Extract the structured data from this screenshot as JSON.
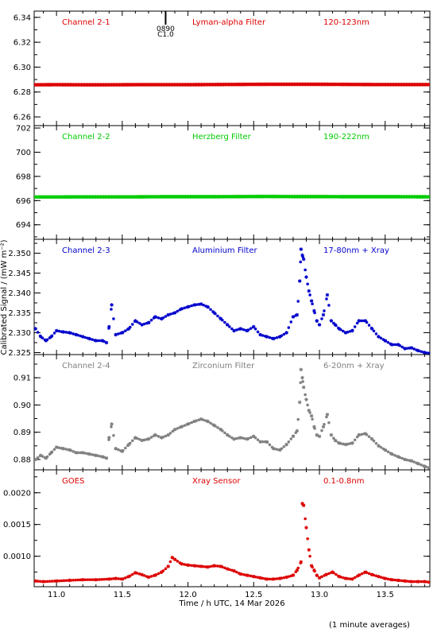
{
  "footnote": "(1 minute averages)",
  "chart_data": [
    {
      "type": "scatter",
      "title": "Channel 2-1",
      "filter": "Lyman-alpha Filter",
      "band": "120-123nm",
      "color": "#dd0000",
      "ylim": [
        6.253,
        6.345
      ],
      "yticks": [
        6.26,
        6.28,
        6.3,
        6.32,
        6.34
      ],
      "ytick_labels": [
        "6.26",
        "6.28",
        "6.30",
        "6.32",
        "6.34"
      ],
      "xlim": [
        10.83,
        13.84
      ],
      "grid": false,
      "annotation": {
        "x": 11.83,
        "lines": [
          "0890",
          "C1.0"
        ]
      },
      "x": [
        10.85,
        11.0,
        11.2,
        11.4,
        11.6,
        11.8,
        12.0,
        12.2,
        12.4,
        12.6,
        12.8,
        13.0,
        13.2,
        13.4,
        13.6,
        13.84
      ],
      "y": [
        6.2858,
        6.2859,
        6.2858,
        6.2858,
        6.2859,
        6.2859,
        6.2859,
        6.286,
        6.2861,
        6.2862,
        6.2862,
        6.2862,
        6.2861,
        6.286,
        6.286,
        6.286
      ]
    },
    {
      "type": "scatter",
      "title": "Channel 2-2",
      "filter": "Herzberg Filter",
      "band": "190-222nm",
      "color": "#00cc00",
      "ylim": [
        692.8,
        702.2
      ],
      "yticks": [
        694,
        696,
        698,
        700,
        702
      ],
      "ytick_labels": [
        "694",
        "696",
        "698",
        "700",
        "702"
      ],
      "xlim": [
        10.83,
        13.84
      ],
      "grid": false,
      "x": [
        10.85,
        11.0,
        11.2,
        11.4,
        11.6,
        11.8,
        12.0,
        12.2,
        12.4,
        12.6,
        12.8,
        13.0,
        13.2,
        13.4,
        13.6,
        13.84
      ],
      "y": [
        696.3,
        696.3,
        696.31,
        696.31,
        696.31,
        696.32,
        696.32,
        696.32,
        696.33,
        696.34,
        696.33,
        696.33,
        696.32,
        696.32,
        696.32,
        696.31
      ]
    },
    {
      "type": "scatter",
      "title": "Channel 2-3",
      "filter": "Aluminium Filter",
      "band": "17-80nm + Xray",
      "color": "#0000cc",
      "ylabel": "Calibrated Signal / (mW m⁻²)",
      "ylim": [
        2.3245,
        2.3535
      ],
      "yticks": [
        2.325,
        2.33,
        2.335,
        2.34,
        2.345,
        2.35
      ],
      "ytick_labels": [
        "2.325",
        "2.330",
        "2.335",
        "2.340",
        "2.345",
        "2.350"
      ],
      "xlim": [
        10.83,
        13.84
      ],
      "grid": false,
      "x": [
        10.84,
        10.88,
        10.92,
        10.96,
        11.0,
        11.05,
        11.1,
        11.15,
        11.2,
        11.25,
        11.3,
        11.35,
        11.38,
        11.4,
        11.42,
        11.45,
        11.5,
        11.55,
        11.6,
        11.65,
        11.7,
        11.75,
        11.8,
        11.85,
        11.9,
        11.95,
        12.0,
        12.05,
        12.1,
        12.15,
        12.2,
        12.25,
        12.3,
        12.35,
        12.4,
        12.45,
        12.5,
        12.55,
        12.6,
        12.65,
        12.7,
        12.75,
        12.8,
        12.83,
        12.85,
        12.86,
        12.87,
        12.88,
        12.9,
        12.92,
        12.94,
        12.96,
        12.98,
        13.0,
        13.03,
        13.06,
        13.09,
        13.12,
        13.15,
        13.2,
        13.25,
        13.3,
        13.35,
        13.4,
        13.45,
        13.5,
        13.55,
        13.6,
        13.65,
        13.7,
        13.75,
        13.8,
        13.84
      ],
      "y": [
        2.331,
        2.329,
        2.328,
        2.329,
        2.3305,
        2.3302,
        2.33,
        2.3295,
        2.329,
        2.3285,
        2.328,
        2.328,
        2.3275,
        2.3315,
        2.337,
        2.3295,
        2.33,
        2.331,
        2.333,
        2.332,
        2.3325,
        2.334,
        2.3335,
        2.3345,
        2.335,
        2.336,
        2.3365,
        2.337,
        2.3372,
        2.3365,
        2.335,
        2.3335,
        2.332,
        2.3305,
        2.331,
        2.3305,
        2.3315,
        2.3295,
        2.329,
        2.3285,
        2.329,
        2.33,
        2.334,
        2.3345,
        2.343,
        2.351,
        2.3495,
        2.3485,
        2.344,
        2.3405,
        2.338,
        2.3355,
        2.333,
        2.332,
        2.3345,
        2.3395,
        2.333,
        2.332,
        2.331,
        2.33,
        2.3305,
        2.333,
        2.333,
        2.331,
        2.329,
        2.328,
        2.327,
        2.327,
        2.326,
        2.3262,
        2.3255,
        2.325,
        2.3248
      ]
    },
    {
      "type": "scatter",
      "title": "Channel 2-4",
      "filter": "Zirconium Filter",
      "band": "6-20nm + Xray",
      "color": "#808080",
      "ylim": [
        0.8762,
        0.9185
      ],
      "yticks": [
        0.88,
        0.89,
        0.9,
        0.91
      ],
      "ytick_labels": [
        "0.88",
        "0.89",
        "0.90",
        "0.91"
      ],
      "xlim": [
        10.83,
        13.84
      ],
      "grid": false,
      "x": [
        10.84,
        10.88,
        10.92,
        10.96,
        11.0,
        11.05,
        11.1,
        11.15,
        11.2,
        11.25,
        11.3,
        11.35,
        11.38,
        11.4,
        11.42,
        11.45,
        11.5,
        11.55,
        11.6,
        11.65,
        11.7,
        11.75,
        11.8,
        11.85,
        11.9,
        11.95,
        12.0,
        12.05,
        12.1,
        12.15,
        12.2,
        12.25,
        12.3,
        12.35,
        12.4,
        12.45,
        12.5,
        12.55,
        12.6,
        12.65,
        12.7,
        12.75,
        12.8,
        12.83,
        12.85,
        12.86,
        12.87,
        12.88,
        12.9,
        12.92,
        12.94,
        12.96,
        12.98,
        13.0,
        13.03,
        13.06,
        13.09,
        13.12,
        13.15,
        13.2,
        13.25,
        13.3,
        13.35,
        13.4,
        13.45,
        13.5,
        13.55,
        13.6,
        13.65,
        13.7,
        13.75,
        13.8,
        13.84
      ],
      "y": [
        0.88,
        0.8815,
        0.8805,
        0.8825,
        0.8845,
        0.884,
        0.8835,
        0.8825,
        0.8825,
        0.882,
        0.8815,
        0.881,
        0.8805,
        0.888,
        0.893,
        0.884,
        0.883,
        0.8855,
        0.888,
        0.887,
        0.8875,
        0.889,
        0.888,
        0.889,
        0.891,
        0.892,
        0.893,
        0.894,
        0.8948,
        0.894,
        0.8925,
        0.891,
        0.889,
        0.8875,
        0.888,
        0.8875,
        0.8885,
        0.8865,
        0.8865,
        0.884,
        0.8835,
        0.8855,
        0.8885,
        0.8905,
        0.901,
        0.913,
        0.91,
        0.9065,
        0.902,
        0.898,
        0.896,
        0.892,
        0.889,
        0.8885,
        0.892,
        0.8965,
        0.889,
        0.887,
        0.886,
        0.8855,
        0.886,
        0.889,
        0.8895,
        0.8875,
        0.885,
        0.8835,
        0.882,
        0.881,
        0.88,
        0.8795,
        0.8785,
        0.8775,
        0.8768
      ]
    },
    {
      "type": "scatter",
      "title": "GOES",
      "filter": "Xray Sensor",
      "band": "0.1-0.8nm",
      "color": "#dd0000",
      "ylim": [
        0.00052,
        0.00236
      ],
      "yticks": [
        0.001,
        0.0015,
        0.002
      ],
      "ytick_labels": [
        "0.0010",
        "0.0015",
        "0.0020"
      ],
      "xlim": [
        10.83,
        13.84
      ],
      "xlabel": "Time / h UTC, 14 Mar 2026",
      "xticks": [
        11.0,
        11.5,
        12.0,
        12.5,
        13.0,
        13.5
      ],
      "xtick_labels": [
        "11.0",
        "11.5",
        "12.0",
        "12.5",
        "13.0",
        "13.5"
      ],
      "grid": false,
      "x": [
        10.84,
        10.9,
        11.0,
        11.1,
        11.2,
        11.3,
        11.4,
        11.45,
        11.5,
        11.55,
        11.6,
        11.65,
        11.7,
        11.75,
        11.8,
        11.85,
        11.88,
        11.9,
        11.95,
        12.0,
        12.05,
        12.1,
        12.15,
        12.2,
        12.25,
        12.3,
        12.35,
        12.4,
        12.45,
        12.5,
        12.55,
        12.6,
        12.65,
        12.7,
        12.75,
        12.8,
        12.83,
        12.86,
        12.87,
        12.88,
        12.9,
        12.92,
        12.94,
        12.96,
        12.98,
        13.0,
        13.05,
        13.1,
        13.15,
        13.2,
        13.25,
        13.3,
        13.35,
        13.4,
        13.45,
        13.5,
        13.55,
        13.6,
        13.65,
        13.7,
        13.75,
        13.8,
        13.84
      ],
      "y": [
        0.00061,
        0.0006,
        0.00061,
        0.00062,
        0.00063,
        0.00063,
        0.00064,
        0.00065,
        0.00064,
        0.00068,
        0.00074,
        0.00071,
        0.00067,
        0.0007,
        0.00075,
        0.00084,
        0.00098,
        0.00095,
        0.00088,
        0.00086,
        0.00085,
        0.00084,
        0.00083,
        0.00085,
        0.00084,
        0.0008,
        0.00077,
        0.00072,
        0.0007,
        0.00068,
        0.00066,
        0.00064,
        0.00064,
        0.00065,
        0.00067,
        0.0007,
        0.00078,
        0.00091,
        0.00183,
        0.0018,
        0.00145,
        0.0011,
        0.00085,
        0.00078,
        0.0007,
        0.00066,
        0.00071,
        0.00075,
        0.00068,
        0.00065,
        0.00064,
        0.0007,
        0.00075,
        0.00071,
        0.00068,
        0.00065,
        0.00063,
        0.00062,
        0.00061,
        0.0006,
        0.0006,
        0.0006,
        0.00059
      ]
    }
  ]
}
